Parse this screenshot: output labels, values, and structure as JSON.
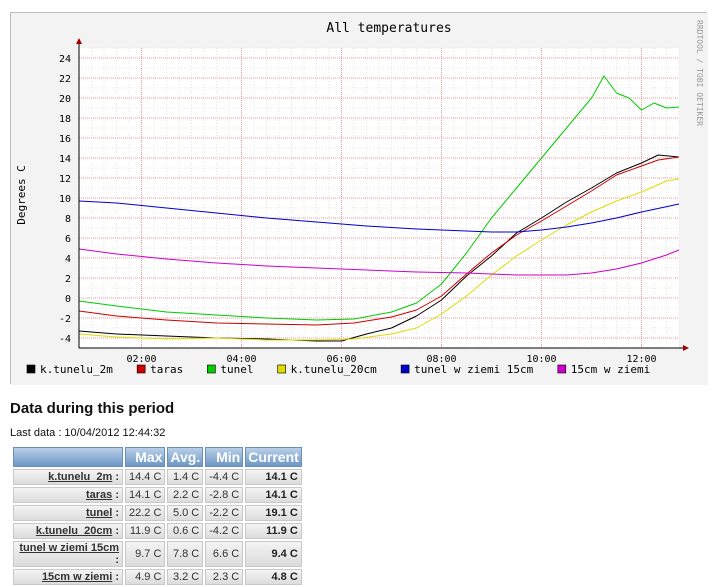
{
  "chart_data": {
    "type": "line",
    "title": "All temperatures",
    "ylabel": "Degrees C",
    "watermark": "RRDTOOL / TOBI OETIKER",
    "x_ticks": [
      "02:00",
      "04:00",
      "06:00",
      "08:00",
      "10:00",
      "12:00"
    ],
    "y_ticks": [
      -4,
      -2,
      0,
      2,
      4,
      6,
      8,
      10,
      12,
      14,
      16,
      18,
      20,
      22,
      24
    ],
    "ylim": [
      -5,
      25
    ],
    "xlim": [
      "00:45",
      "12:45"
    ],
    "grid": true,
    "legend_position": "bottom",
    "series": [
      {
        "name": "k.tunelu_2m",
        "color": "#000000",
        "points": [
          [
            "00:45",
            -3.3
          ],
          [
            "01:30",
            -3.6
          ],
          [
            "02:30",
            -3.8
          ],
          [
            "03:30",
            -4.0
          ],
          [
            "04:30",
            -4.1
          ],
          [
            "05:30",
            -4.3
          ],
          [
            "06:00",
            -4.3
          ],
          [
            "06:30",
            -3.6
          ],
          [
            "07:00",
            -3.0
          ],
          [
            "07:30",
            -1.8
          ],
          [
            "08:00",
            -0.2
          ],
          [
            "08:30",
            2.2
          ],
          [
            "09:00",
            4.2
          ],
          [
            "09:30",
            6.5
          ],
          [
            "10:00",
            8.0
          ],
          [
            "10:30",
            9.6
          ],
          [
            "11:00",
            11.0
          ],
          [
            "11:30",
            12.5
          ],
          [
            "12:00",
            13.5
          ],
          [
            "12:20",
            14.3
          ],
          [
            "12:45",
            14.1
          ]
        ]
      },
      {
        "name": "taras",
        "color": "#cc0000",
        "points": [
          [
            "00:45",
            -1.3
          ],
          [
            "01:30",
            -1.8
          ],
          [
            "02:30",
            -2.2
          ],
          [
            "03:30",
            -2.5
          ],
          [
            "04:30",
            -2.6
          ],
          [
            "05:30",
            -2.7
          ],
          [
            "06:15",
            -2.5
          ],
          [
            "07:00",
            -1.9
          ],
          [
            "07:30",
            -1.2
          ],
          [
            "08:00",
            0.2
          ],
          [
            "08:30",
            2.4
          ],
          [
            "09:00",
            4.5
          ],
          [
            "09:30",
            6.3
          ],
          [
            "10:00",
            7.7
          ],
          [
            "10:30",
            9.2
          ],
          [
            "11:00",
            10.7
          ],
          [
            "11:30",
            12.3
          ],
          [
            "12:00",
            13.2
          ],
          [
            "12:20",
            13.8
          ],
          [
            "12:45",
            14.1
          ]
        ]
      },
      {
        "name": "tunel",
        "color": "#00cc00",
        "points": [
          [
            "00:45",
            -0.3
          ],
          [
            "01:30",
            -0.8
          ],
          [
            "02:30",
            -1.4
          ],
          [
            "03:30",
            -1.7
          ],
          [
            "04:30",
            -2.0
          ],
          [
            "05:30",
            -2.2
          ],
          [
            "06:15",
            -2.1
          ],
          [
            "07:00",
            -1.4
          ],
          [
            "07:30",
            -0.5
          ],
          [
            "08:00",
            1.4
          ],
          [
            "08:30",
            4.5
          ],
          [
            "09:00",
            8.0
          ],
          [
            "09:30",
            11.0
          ],
          [
            "10:00",
            14.0
          ],
          [
            "10:30",
            17.0
          ],
          [
            "11:00",
            20.0
          ],
          [
            "11:15",
            22.2
          ],
          [
            "11:30",
            20.5
          ],
          [
            "11:45",
            20.0
          ],
          [
            "12:00",
            18.8
          ],
          [
            "12:15",
            19.5
          ],
          [
            "12:30",
            19.0
          ],
          [
            "12:45",
            19.1
          ]
        ]
      },
      {
        "name": "k.tunelu_20cm",
        "color": "#dddd00",
        "points": [
          [
            "00:45",
            -3.6
          ],
          [
            "01:30",
            -3.9
          ],
          [
            "02:30",
            -4.1
          ],
          [
            "03:30",
            -4.0
          ],
          [
            "04:30",
            -4.2
          ],
          [
            "05:30",
            -4.2
          ],
          [
            "06:15",
            -4.1
          ],
          [
            "07:00",
            -3.6
          ],
          [
            "07:30",
            -3.0
          ],
          [
            "08:00",
            -1.6
          ],
          [
            "08:30",
            0.2
          ],
          [
            "09:00",
            2.3
          ],
          [
            "09:30",
            4.2
          ],
          [
            "10:00",
            5.8
          ],
          [
            "10:30",
            7.3
          ],
          [
            "11:00",
            8.6
          ],
          [
            "11:30",
            9.7
          ],
          [
            "12:00",
            10.6
          ],
          [
            "12:30",
            11.7
          ],
          [
            "12:45",
            11.9
          ]
        ]
      },
      {
        "name": "tunel w ziemi 15cm",
        "color": "#0000cc",
        "points": [
          [
            "00:45",
            9.7
          ],
          [
            "01:30",
            9.5
          ],
          [
            "02:30",
            9.0
          ],
          [
            "03:30",
            8.5
          ],
          [
            "04:30",
            8.0
          ],
          [
            "05:30",
            7.6
          ],
          [
            "06:30",
            7.2
          ],
          [
            "07:30",
            6.9
          ],
          [
            "08:30",
            6.7
          ],
          [
            "09:00",
            6.6
          ],
          [
            "09:30",
            6.6
          ],
          [
            "10:00",
            6.8
          ],
          [
            "10:30",
            7.1
          ],
          [
            "11:00",
            7.5
          ],
          [
            "11:30",
            8.0
          ],
          [
            "12:00",
            8.6
          ],
          [
            "12:45",
            9.4
          ]
        ]
      },
      {
        "name": "15cm w ziemi",
        "color": "#cc00cc",
        "points": [
          [
            "00:45",
            4.9
          ],
          [
            "01:30",
            4.4
          ],
          [
            "02:30",
            3.9
          ],
          [
            "03:30",
            3.5
          ],
          [
            "04:30",
            3.2
          ],
          [
            "05:30",
            3.0
          ],
          [
            "06:30",
            2.8
          ],
          [
            "07:30",
            2.6
          ],
          [
            "08:30",
            2.5
          ],
          [
            "09:00",
            2.4
          ],
          [
            "09:30",
            2.3
          ],
          [
            "10:00",
            2.3
          ],
          [
            "10:30",
            2.3
          ],
          [
            "11:00",
            2.5
          ],
          [
            "11:30",
            2.9
          ],
          [
            "12:00",
            3.5
          ],
          [
            "12:30",
            4.3
          ],
          [
            "12:45",
            4.8
          ]
        ]
      }
    ]
  },
  "section_title": "Data during this period",
  "last_data": "Last data : 10/04/2012 12:44:32",
  "table": {
    "headers": [
      "Max",
      "Avg.",
      "Min",
      "Current"
    ],
    "rows": [
      {
        "name": "k.tunelu_2m",
        "max": "14.4 C",
        "avg": "1.4 C",
        "min": "-4.4 C",
        "current": "14.1 C"
      },
      {
        "name": "taras",
        "max": "14.1 C",
        "avg": "2.2 C",
        "min": "-2.8 C",
        "current": "14.1 C"
      },
      {
        "name": "tunel",
        "max": "22.2 C",
        "avg": "5.0 C",
        "min": "-2.2 C",
        "current": "19.1 C"
      },
      {
        "name": "k.tunelu_20cm",
        "max": "11.9 C",
        "avg": "0.6 C",
        "min": "-4.2 C",
        "current": "11.9 C"
      },
      {
        "name": "tunel w ziemi 15cm",
        "max": "9.7 C",
        "avg": "7.8 C",
        "min": "6.6 C",
        "current": "9.4 C"
      },
      {
        "name": "15cm w ziemi",
        "max": "4.9 C",
        "avg": "3.2 C",
        "min": "2.3 C",
        "current": "4.8 C"
      }
    ]
  }
}
